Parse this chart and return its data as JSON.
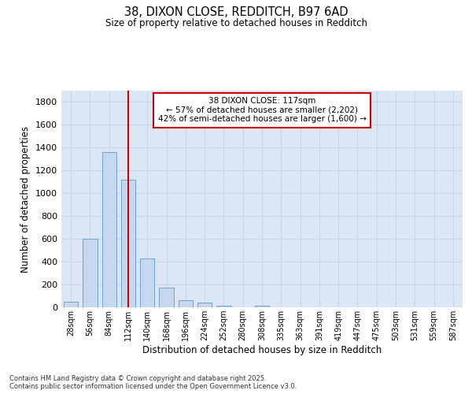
{
  "title_line1": "38, DIXON CLOSE, REDDITCH, B97 6AD",
  "title_line2": "Size of property relative to detached houses in Redditch",
  "xlabel": "Distribution of detached houses by size in Redditch",
  "ylabel": "Number of detached properties",
  "categories": [
    "28sqm",
    "56sqm",
    "84sqm",
    "112sqm",
    "140sqm",
    "168sqm",
    "196sqm",
    "224sqm",
    "252sqm",
    "280sqm",
    "308sqm",
    "335sqm",
    "363sqm",
    "391sqm",
    "419sqm",
    "447sqm",
    "475sqm",
    "503sqm",
    "531sqm",
    "559sqm",
    "587sqm"
  ],
  "values": [
    50,
    600,
    1360,
    1120,
    430,
    170,
    65,
    40,
    15,
    0,
    15,
    0,
    0,
    0,
    0,
    0,
    0,
    0,
    0,
    0,
    0
  ],
  "bar_color": "#c5d8ed",
  "bar_edge_color": "#6ba3d6",
  "grid_color": "#c8d4e8",
  "background_color": "#dce6f5",
  "plot_bg_color": "#dce6f5",
  "vline_color": "#cc0000",
  "vline_x_index": 3,
  "annotation_text": "38 DIXON CLOSE: 117sqm\n← 57% of detached houses are smaller (2,202)\n42% of semi-detached houses are larger (1,600) →",
  "ylim": [
    0,
    1900
  ],
  "yticks": [
    0,
    200,
    400,
    600,
    800,
    1000,
    1200,
    1400,
    1600,
    1800
  ],
  "footer_line1": "Contains HM Land Registry data © Crown copyright and database right 2025.",
  "footer_line2": "Contains public sector information licensed under the Open Government Licence v3.0."
}
